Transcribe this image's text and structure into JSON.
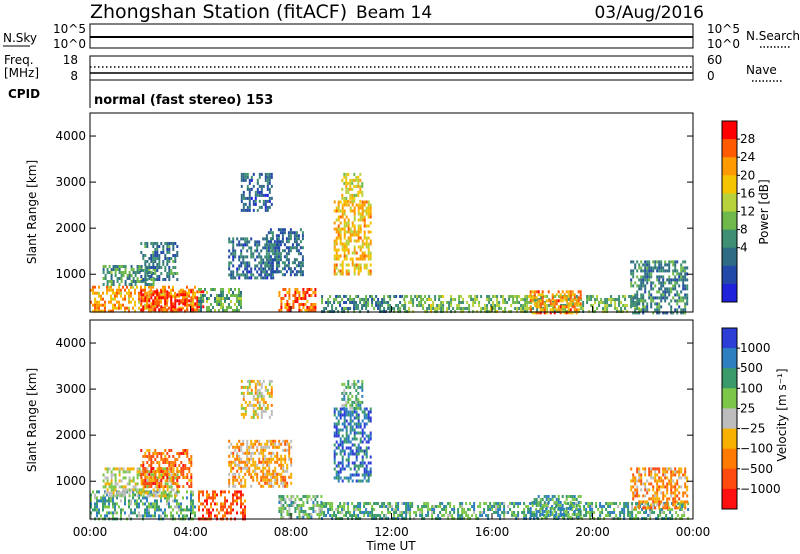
{
  "header": {
    "station": "Zhongshan Station (fitACF)",
    "beam": "Beam 14",
    "date": "03/Aug/2016"
  },
  "strips": {
    "nsky_label": "N.Sky",
    "nsearch_label": "N.Search",
    "freq_label_1": "Freq.",
    "freq_label_2": "[MHz]",
    "cpid_label": "CPID",
    "nave_label": "Nave",
    "left_top_tick": "10^5",
    "left_bottom_tick": "10^0",
    "right_top_tick": "10^5",
    "right_bottom_tick": "10^0",
    "freq_top_tick": "18",
    "freq_bottom_tick": "8",
    "nave_top_tick": "60",
    "nave_bottom_tick": "0",
    "cpid_text": "normal (fast stereo) 153"
  },
  "chart_data": [
    {
      "type": "heatmap",
      "panel": "power",
      "ylabel": "Slant Range [km]",
      "yticks": [
        "4000",
        "3000",
        "2000",
        "1000"
      ],
      "ylim": [
        180,
        4500
      ],
      "colorbar_label": "Power [dB]",
      "colorbar_ticks": [
        "28",
        "24",
        "20",
        "16",
        "12",
        "8",
        "4"
      ],
      "colorbar_colors": [
        "#ff0000",
        "#ff5a00",
        "#ff9a00",
        "#f5c400",
        "#b8d23c",
        "#6fb94b",
        "#3e8f73",
        "#2e6c84",
        "#2349a8",
        "#1e22d8"
      ],
      "regions": [
        {
          "t0": 0.0,
          "t1": 4.2,
          "r0": 180,
          "r1": 750,
          "level": 0.75
        },
        {
          "t0": 2.0,
          "t1": 4.5,
          "r0": 200,
          "r1": 650,
          "level": 0.95
        },
        {
          "t0": 0.5,
          "t1": 2.5,
          "r0": 750,
          "r1": 1200,
          "level": 0.35
        },
        {
          "t0": 2.0,
          "t1": 3.5,
          "r0": 900,
          "r1": 1700,
          "level": 0.25
        },
        {
          "t0": 4.3,
          "t1": 6.0,
          "r0": 180,
          "r1": 700,
          "level": 0.4
        },
        {
          "t0": 5.5,
          "t1": 7.5,
          "r0": 900,
          "r1": 1800,
          "level": 0.2
        },
        {
          "t0": 6.0,
          "t1": 7.2,
          "r0": 2400,
          "r1": 3200,
          "level": 0.18
        },
        {
          "t0": 7.0,
          "t1": 8.5,
          "r0": 1000,
          "r1": 2000,
          "level": 0.22
        },
        {
          "t0": 7.5,
          "t1": 9.0,
          "r0": 180,
          "r1": 700,
          "level": 0.85
        },
        {
          "t0": 9.7,
          "t1": 11.2,
          "r0": 1000,
          "r1": 2600,
          "level": 0.7
        },
        {
          "t0": 10.0,
          "t1": 10.8,
          "r0": 2600,
          "r1": 3200,
          "level": 0.6
        },
        {
          "t0": 9.2,
          "t1": 12.5,
          "r0": 180,
          "r1": 550,
          "level": 0.3
        },
        {
          "t0": 12.5,
          "t1": 22.0,
          "r0": 180,
          "r1": 550,
          "level": 0.45
        },
        {
          "t0": 17.5,
          "t1": 19.5,
          "r0": 180,
          "r1": 650,
          "level": 0.8
        },
        {
          "t0": 21.5,
          "t1": 23.8,
          "r0": 180,
          "r1": 1300,
          "level": 0.3
        }
      ]
    },
    {
      "type": "heatmap",
      "panel": "velocity",
      "ylabel": "Slant Range [km]",
      "yticks": [
        "4000",
        "3000",
        "2000",
        "1000"
      ],
      "ylim": [
        180,
        4500
      ],
      "colorbar_label": "Velocity [m s⁻¹]",
      "colorbar_ticks": [
        "1000",
        "500",
        "100",
        "25",
        "−25",
        "−100",
        "−500",
        "−1000"
      ],
      "colorbar_colors": [
        "#2c3ed6",
        "#2d7fbf",
        "#3a9a6a",
        "#7cc74a",
        "#bdbdbd",
        "#f5b000",
        "#ff7a00",
        "#ff4a10",
        "#ff1010"
      ],
      "regions": [
        {
          "t0": 0.0,
          "t1": 4.2,
          "r0": 180,
          "r1": 800,
          "level": 0.72
        },
        {
          "t0": 0.5,
          "t1": 3.5,
          "r0": 700,
          "r1": 1300,
          "level": 0.5
        },
        {
          "t0": 2.0,
          "t1": 4.0,
          "r0": 900,
          "r1": 1700,
          "level": 0.2
        },
        {
          "t0": 4.3,
          "t1": 6.2,
          "r0": 180,
          "r1": 800,
          "level": 0.15
        },
        {
          "t0": 5.5,
          "t1": 8.0,
          "r0": 900,
          "r1": 1900,
          "level": 0.35
        },
        {
          "t0": 6.0,
          "t1": 7.2,
          "r0": 2400,
          "r1": 3200,
          "level": 0.45
        },
        {
          "t0": 7.5,
          "t1": 9.2,
          "r0": 180,
          "r1": 700,
          "level": 0.65
        },
        {
          "t0": 9.7,
          "t1": 11.2,
          "r0": 1000,
          "r1": 2600,
          "level": 0.88
        },
        {
          "t0": 10.0,
          "t1": 10.8,
          "r0": 2600,
          "r1": 3200,
          "level": 0.7
        },
        {
          "t0": 9.2,
          "t1": 23.8,
          "r0": 180,
          "r1": 550,
          "level": 0.72
        },
        {
          "t0": 17.5,
          "t1": 19.5,
          "r0": 180,
          "r1": 700,
          "level": 0.75
        },
        {
          "t0": 21.5,
          "t1": 23.8,
          "r0": 400,
          "r1": 1300,
          "level": 0.3
        }
      ]
    }
  ],
  "xaxis": {
    "label": "Time UT",
    "ticks": [
      "00:00",
      "04:00",
      "08:00",
      "12:00",
      "16:00",
      "20:00",
      "00:00"
    ]
  }
}
